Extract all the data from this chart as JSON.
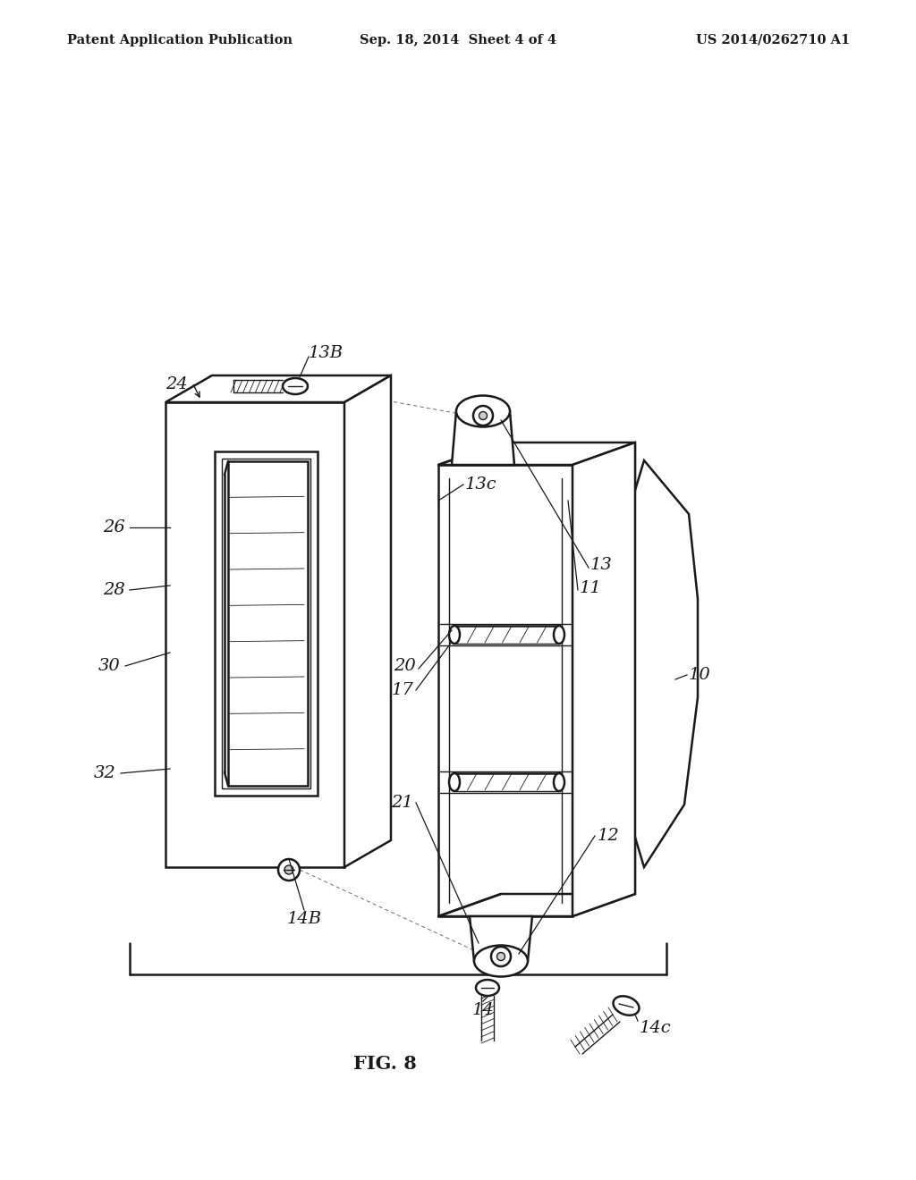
{
  "title_left": "Patent Application Publication",
  "title_mid": "Sep. 18, 2014  Sheet 4 of 4",
  "title_right": "US 2014/0262710 A1",
  "fig_label": "FIG. 8",
  "background_color": "#ffffff",
  "line_color": "#1a1a1a",
  "header_fontsize": 10.5,
  "label_fontsize": 14,
  "fig_label_fontsize": 15
}
